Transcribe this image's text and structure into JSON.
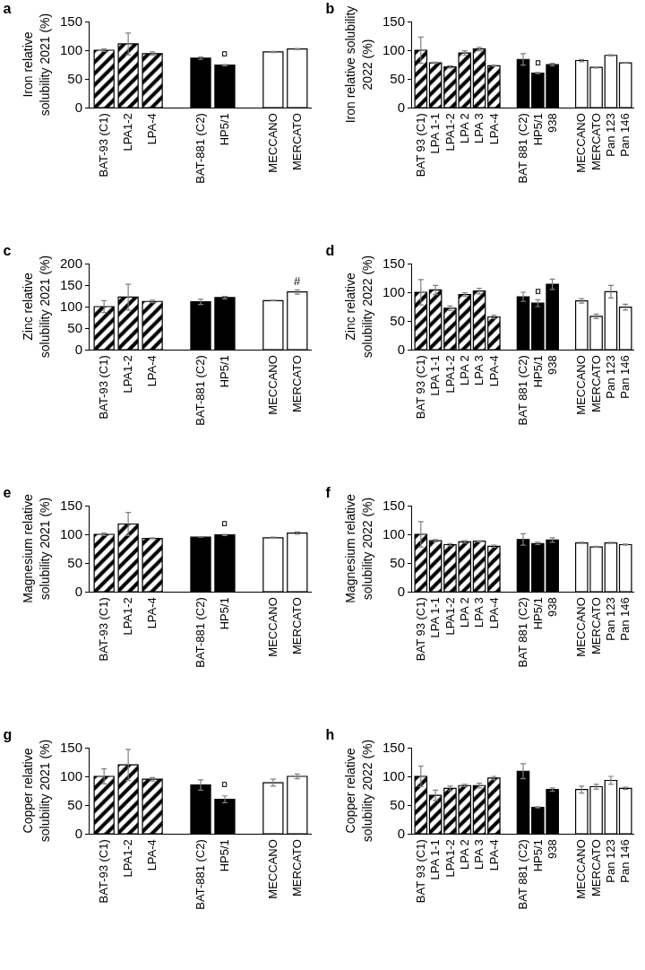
{
  "chart_data": [
    {
      "type": "bar",
      "title": "a",
      "ylabel": "Iron relative\nsolubility 2021 (%)",
      "categories": [
        "BAT-93 (C1)",
        "LPA1-2",
        "LPA-4",
        null,
        "BAT-881 (C2)",
        "HP5/1",
        null,
        "MECCANO",
        "MERCATO"
      ],
      "ylim": [
        0,
        150
      ],
      "yticks": [
        0,
        50,
        100,
        150
      ],
      "series": [
        {
          "color": "#000000",
          "values": [
            100,
            111,
            94,
            null,
            null,
            null,
            null,
            null,
            null
          ],
          "errors": [
            2,
            19,
            3,
            null,
            null,
            null,
            null,
            null,
            null
          ]
        },
        {
          "color": "#000000",
          "values": [
            null,
            null,
            null,
            null,
            86,
            74,
            null,
            null,
            null
          ],
          "errors": [
            null,
            null,
            null,
            null,
            2,
            1,
            null,
            null,
            null
          ]
        },
        {
          "color": "#ffffff",
          "values": [
            null,
            null,
            null,
            null,
            null,
            null,
            null,
            97,
            102
          ],
          "errors": [
            null,
            null,
            null,
            null,
            null,
            null,
            null,
            1,
            1
          ]
        }
      ],
      "annotations": [
        {
          "text": "¤",
          "x": "HP5/1",
          "y": 80
        }
      ]
    },
    {
      "type": "bar",
      "title": "b",
      "ylabel": "Iron relative solubility\n2022 (%)",
      "categories": [
        "BAT 93 (C1)",
        "LPA 1-1",
        "LPA1-2",
        "LPA 2",
        "LPA 3",
        "LPA-4",
        null,
        "BAT 881 (C2)",
        "HP5/1",
        "938",
        null,
        "MECCANO",
        "MERCATO",
        "Pan 123",
        "Pan 146"
      ],
      "ylim": [
        0,
        150
      ],
      "yticks": [
        0,
        50,
        100,
        150
      ],
      "series": [
        {
          "color": "#000000",
          "values": [
            100,
            78,
            71,
            95,
            102,
            73,
            null,
            null,
            null,
            null,
            null,
            null,
            null,
            null,
            null
          ],
          "errors": [
            23,
            1,
            2,
            4,
            3,
            1,
            null,
            null,
            null,
            null,
            null,
            null,
            null,
            null,
            null
          ]
        },
        {
          "color": "#000000",
          "values": [
            null,
            null,
            null,
            null,
            null,
            null,
            null,
            84,
            60,
            75,
            null,
            null,
            null,
            null,
            null
          ],
          "errors": [
            null,
            null,
            null,
            null,
            null,
            null,
            null,
            10,
            1,
            2,
            null,
            null,
            null,
            null,
            null
          ]
        },
        {
          "color": "#ffffff",
          "values": [
            null,
            null,
            null,
            null,
            null,
            null,
            null,
            null,
            null,
            null,
            null,
            82,
            70,
            91,
            78
          ],
          "errors": [
            null,
            null,
            null,
            null,
            null,
            null,
            null,
            null,
            null,
            null,
            null,
            2,
            1,
            1,
            0
          ]
        }
      ],
      "annotations": [
        {
          "text": "¤",
          "x": "HP5/1",
          "y": 64
        }
      ]
    },
    {
      "type": "bar",
      "title": "c",
      "ylabel": "Zinc relative\nsolubility 2021 (%)",
      "categories": [
        "BAT-93 (C1)",
        "LPA1-2",
        "LPA-4",
        null,
        "BAT-881 (C2)",
        "HP5/1",
        null,
        "MECCANO",
        "MERCATO"
      ],
      "ylim": [
        0,
        200
      ],
      "yticks": [
        0,
        50,
        100,
        150,
        200
      ],
      "series": [
        {
          "color": "#000000",
          "values": [
            100,
            122,
            112,
            null,
            null,
            null,
            null,
            null,
            null
          ],
          "errors": [
            14,
            30,
            3,
            null,
            null,
            null,
            null,
            null,
            null
          ]
        },
        {
          "color": "#000000",
          "values": [
            null,
            null,
            null,
            null,
            111,
            121,
            null,
            null,
            null
          ],
          "errors": [
            null,
            null,
            null,
            null,
            6,
            3,
            null,
            null,
            null
          ]
        },
        {
          "color": "#ffffff",
          "values": [
            null,
            null,
            null,
            null,
            null,
            null,
            null,
            114,
            134
          ],
          "errors": [
            null,
            null,
            null,
            null,
            null,
            null,
            null,
            1,
            5
          ]
        }
      ],
      "annotations": [
        {
          "text": "#",
          "x": "MERCATO",
          "y": 140
        }
      ]
    },
    {
      "type": "bar",
      "title": "d",
      "ylabel": "Zinc relative\nsolubility 2022 (%)",
      "categories": [
        "BAT 93 (C1)",
        "LPA 1-1",
        "LPA1-2",
        "LPA 2",
        "LPA 3",
        "LPA-4",
        null,
        "BAT 881 (C2)",
        "HP5/1",
        "938",
        null,
        "MECCANO",
        "MERCATO",
        "Pan 123",
        "Pan 146"
      ],
      "ylim": [
        0,
        150
      ],
      "yticks": [
        0,
        50,
        100,
        150
      ],
      "series": [
        {
          "color": "#000000",
          "values": [
            100,
            104,
            72,
            96,
            102,
            57,
            null,
            null,
            null,
            null,
            null,
            null,
            null,
            null,
            null
          ],
          "errors": [
            22,
            8,
            4,
            3,
            5,
            3,
            null,
            null,
            null,
            null,
            null,
            null,
            null,
            null,
            null
          ]
        },
        {
          "color": "#000000",
          "values": [
            null,
            null,
            null,
            null,
            null,
            null,
            null,
            92,
            81,
            114,
            null,
            null,
            null,
            null,
            null
          ],
          "errors": [
            null,
            null,
            null,
            null,
            null,
            null,
            null,
            8,
            6,
            9,
            null,
            null,
            null,
            null,
            null
          ]
        },
        {
          "color": "#ffffff",
          "values": [
            null,
            null,
            null,
            null,
            null,
            null,
            null,
            null,
            null,
            null,
            null,
            85,
            58,
            101,
            74
          ],
          "errors": [
            null,
            null,
            null,
            null,
            null,
            null,
            null,
            null,
            null,
            null,
            null,
            4,
            4,
            11,
            5
          ]
        }
      ],
      "annotations": [
        {
          "text": "¤",
          "x": "HP5/1",
          "y": 88
        }
      ]
    },
    {
      "type": "bar",
      "title": "e",
      "ylabel": "Magnesium relative\nsolubility 2021 (%)",
      "categories": [
        "BAT-93 (C1)",
        "LPA1-2",
        "LPA-4",
        null,
        "BAT-881 (C2)",
        "HP5/1",
        null,
        "MECCANO",
        "MERCATO"
      ],
      "ylim": [
        0,
        150
      ],
      "yticks": [
        0,
        50,
        100,
        150
      ],
      "series": [
        {
          "color": "#000000",
          "values": [
            100,
            118,
            93,
            null,
            null,
            null,
            null,
            null,
            null
          ],
          "errors": [
            2,
            20,
            1,
            null,
            null,
            null,
            null,
            null,
            null
          ]
        },
        {
          "color": "#000000",
          "values": [
            null,
            null,
            null,
            null,
            95,
            99,
            null,
            null,
            null
          ],
          "errors": [
            null,
            null,
            null,
            null,
            0,
            1,
            null,
            null,
            null
          ]
        },
        {
          "color": "#ffffff",
          "values": [
            null,
            null,
            null,
            null,
            null,
            null,
            null,
            94,
            102
          ],
          "errors": [
            null,
            null,
            null,
            null,
            null,
            null,
            null,
            1,
            2
          ]
        }
      ],
      "annotations": [
        {
          "text": "¤",
          "x": "HP5/1",
          "y": 105
        }
      ]
    },
    {
      "type": "bar",
      "title": "f",
      "ylabel": "Magnesium relative\nsolubility 2022 (%)",
      "categories": [
        "BAT 93 (C1)",
        "LPA 1-1",
        "LPA1-2",
        "LPA 2",
        "LPA 3",
        "LPA-4",
        null,
        "BAT 881 (C2)",
        "HP5/1",
        "938",
        null,
        "MECCANO",
        "MERCATO",
        "Pan 123",
        "Pan 146"
      ],
      "ylim": [
        0,
        150
      ],
      "yticks": [
        0,
        50,
        100,
        150
      ],
      "series": [
        {
          "color": "#000000",
          "values": [
            100,
            89,
            82,
            87,
            88,
            79,
            null,
            null,
            null,
            null,
            null,
            null,
            null,
            null,
            null
          ],
          "errors": [
            22,
            2,
            2,
            2,
            1,
            2,
            null,
            null,
            null,
            null,
            null,
            null,
            null,
            null,
            null
          ]
        },
        {
          "color": "#000000",
          "values": [
            null,
            null,
            null,
            null,
            null,
            null,
            null,
            91,
            84,
            90,
            null,
            null,
            null,
            null,
            null
          ],
          "errors": [
            null,
            null,
            null,
            null,
            null,
            null,
            null,
            10,
            2,
            4,
            null,
            null,
            null,
            null,
            null
          ]
        },
        {
          "color": "#ffffff",
          "values": [
            null,
            null,
            null,
            null,
            null,
            null,
            null,
            null,
            null,
            null,
            null,
            85,
            78,
            85,
            82
          ],
          "errors": [
            null,
            null,
            null,
            null,
            null,
            null,
            null,
            null,
            null,
            null,
            null,
            1,
            1,
            1,
            1
          ]
        }
      ]
    },
    {
      "type": "bar",
      "title": "g",
      "ylabel": "Copper relative\nsolubility 2021 (%)",
      "categories": [
        "BAT-93 (C1)",
        "LPA1-2",
        "LPA-4",
        null,
        "BAT-881 (C2)",
        "HP5/1",
        null,
        "MECCANO",
        "MERCATO"
      ],
      "ylim": [
        0,
        150
      ],
      "yticks": [
        0,
        50,
        100,
        150
      ],
      "series": [
        {
          "color": "#000000",
          "values": [
            100,
            120,
            95,
            null,
            null,
            null,
            null,
            null,
            null
          ],
          "errors": [
            13,
            27,
            3,
            null,
            null,
            null,
            null,
            null,
            null
          ]
        },
        {
          "color": "#000000",
          "values": [
            null,
            null,
            null,
            null,
            85,
            60,
            null,
            null,
            null
          ],
          "errors": [
            null,
            null,
            null,
            null,
            9,
            6,
            null,
            null,
            null
          ]
        },
        {
          "color": "#ffffff",
          "values": [
            null,
            null,
            null,
            null,
            null,
            null,
            null,
            89,
            100
          ],
          "errors": [
            null,
            null,
            null,
            null,
            null,
            null,
            null,
            6,
            4
          ]
        }
      ],
      "annotations": [
        {
          "text": "¤",
          "x": "HP5/1",
          "y": 72
        }
      ]
    },
    {
      "type": "bar",
      "title": "h",
      "ylabel": "Copper relative\nsolubility 2022 (%)",
      "categories": [
        "BAT 93 (C1)",
        "LPA 1-1",
        "LPA1-2",
        "LPA 2",
        "LPA 3",
        "LPA-4",
        null,
        "BAT 881 (C2)",
        "HP5/1",
        "938",
        null,
        "MECCANO",
        "MERCATO",
        "Pan 123",
        "Pan 146"
      ],
      "ylim": [
        0,
        150
      ],
      "yticks": [
        0,
        50,
        100,
        150
      ],
      "series": [
        {
          "color": "#000000",
          "values": [
            100,
            67,
            79,
            84,
            84,
            97,
            null,
            null,
            null,
            null,
            null,
            null,
            null,
            null,
            null
          ],
          "errors": [
            18,
            9,
            4,
            2,
            4,
            3,
            null,
            null,
            null,
            null,
            null,
            null,
            null,
            null,
            null
          ]
        },
        {
          "color": "#000000",
          "values": [
            null,
            null,
            null,
            null,
            null,
            null,
            null,
            109,
            46,
            77,
            null,
            null,
            null,
            null,
            null
          ],
          "errors": [
            null,
            null,
            null,
            null,
            null,
            null,
            null,
            13,
            1,
            3,
            null,
            null,
            null,
            null,
            null
          ]
        },
        {
          "color": "#ffffff",
          "values": [
            null,
            null,
            null,
            null,
            null,
            null,
            null,
            null,
            null,
            null,
            null,
            77,
            82,
            93,
            79
          ],
          "errors": [
            null,
            null,
            null,
            null,
            null,
            null,
            null,
            null,
            null,
            null,
            null,
            6,
            4,
            7,
            2
          ]
        }
      ]
    }
  ]
}
